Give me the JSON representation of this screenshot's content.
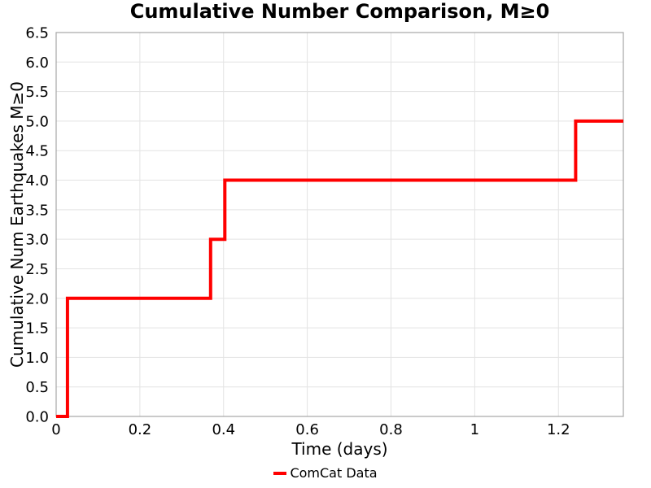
{
  "chart_data": {
    "type": "line",
    "style": "step-post",
    "title": "Cumulative Number Comparison, M≥0",
    "xlabel": "Time (days)",
    "ylabel": "Cumulative Num Earthquakes M≥0",
    "xlim": [
      0,
      1.355
    ],
    "ylim": [
      0,
      6.5
    ],
    "grid": true,
    "x_ticks": {
      "values": [
        0,
        0.2,
        0.4,
        0.6,
        0.8,
        1,
        1.2
      ],
      "labels": [
        "0",
        "0.2",
        "0.4",
        "0.6",
        "0.8",
        "1",
        "1.2"
      ]
    },
    "y_ticks": {
      "values": [
        0,
        0.5,
        1,
        1.5,
        2,
        2.5,
        3,
        3.5,
        4,
        4.5,
        5,
        5.5,
        6,
        6.5
      ],
      "labels": [
        "0.0",
        "0.5",
        "1.0",
        "1.5",
        "2.0",
        "2.5",
        "3.0",
        "3.5",
        "4.0",
        "4.5",
        "5.0",
        "5.5",
        "6.0",
        "6.5"
      ]
    },
    "legend": {
      "position": "below-xlabel",
      "entries": [
        {
          "label": "ComCat Data",
          "color": "#ff0000"
        }
      ]
    },
    "series": [
      {
        "name": "ComCat Data",
        "color": "#ff0000",
        "line_width": 4,
        "step_points": [
          [
            0,
            0
          ],
          [
            0.027,
            0
          ],
          [
            0.027,
            2
          ],
          [
            0.369,
            2
          ],
          [
            0.369,
            3
          ],
          [
            0.403,
            3
          ],
          [
            0.403,
            4
          ],
          [
            1.241,
            4
          ],
          [
            1.241,
            5
          ],
          [
            1.355,
            5
          ]
        ],
        "event_times_days": [
          0.027,
          0.027,
          0.369,
          0.403,
          1.241
        ],
        "final_cumulative_count": 5
      }
    ],
    "colors": {
      "grid": "#e3e3e3",
      "spine": "#a6a6a6",
      "text": "#000000",
      "background": "#ffffff"
    }
  }
}
